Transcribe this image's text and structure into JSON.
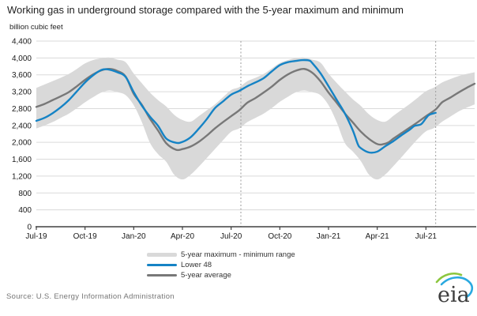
{
  "header": {
    "title": "Working gas in underground storage compared with the 5-year maximum and minimum",
    "units_label": "billion cubic feet"
  },
  "footer": {
    "source": "Source:  U.S. Energy Information Administration",
    "logo_text": "eia"
  },
  "colors": {
    "band": "#d9d9d9",
    "lower48": "#1583c5",
    "avg": "#787878",
    "grid": "#dadada",
    "axis": "#404040",
    "dashed": "#9b9b9b",
    "tick_text": "#1a1a1a"
  },
  "legend": [
    {
      "label": "5-year maximum - minimum range",
      "swatch": "band",
      "color": "#d9d9d9"
    },
    {
      "label": "Lower 48",
      "swatch": "line",
      "color": "#1583c5"
    },
    {
      "label": "5-year average",
      "swatch": "line",
      "color": "#787878"
    }
  ],
  "chart_data": {
    "type": "area",
    "title": "Working gas in underground storage compared with the 5-year maximum and minimum",
    "xlabel": "",
    "ylabel": "billion cubic feet",
    "ylim": [
      0,
      4400
    ],
    "ytick_step": 400,
    "yticks": [
      "0",
      "400",
      "800",
      "1,200",
      "1,600",
      "2,000",
      "2,400",
      "2,800",
      "3,200",
      "3,600",
      "4,000",
      "4,400"
    ],
    "x_unit_note": "t = months after Jul-2019",
    "x_max": 27,
    "x_ticks": [
      {
        "t": 0,
        "label": "Jul-19"
      },
      {
        "t": 3,
        "label": "Oct-19"
      },
      {
        "t": 6,
        "label": "Jan-20"
      },
      {
        "t": 9,
        "label": "Apr-20"
      },
      {
        "t": 12,
        "label": "Jul-20"
      },
      {
        "t": 15,
        "label": "Oct-20"
      },
      {
        "t": 18,
        "label": "Jan-21"
      },
      {
        "t": 21,
        "label": "Apr-21"
      },
      {
        "t": 24,
        "label": "Jul-21"
      }
    ],
    "dashed_vlines_t": [
      12.6,
      24.6
    ],
    "grid": true,
    "legend_position": "bottom",
    "band": {
      "name": "5-year maximum - minimum range",
      "points_t_min_max": [
        [
          0,
          2330,
          3290
        ],
        [
          0.5,
          2400,
          3370
        ],
        [
          1,
          2480,
          3450
        ],
        [
          1.5,
          2580,
          3530
        ],
        [
          2,
          2680,
          3620
        ],
        [
          2.5,
          2810,
          3740
        ],
        [
          3,
          2950,
          3870
        ],
        [
          3.5,
          3070,
          3950
        ],
        [
          4,
          3180,
          3990
        ],
        [
          4.5,
          3230,
          4010
        ],
        [
          5,
          3190,
          3960
        ],
        [
          5.5,
          3120,
          3900
        ],
        [
          6,
          2880,
          3630
        ],
        [
          6.5,
          2480,
          3400
        ],
        [
          7,
          1990,
          3180
        ],
        [
          7.5,
          1720,
          3000
        ],
        [
          8,
          1540,
          2850
        ],
        [
          8.5,
          1230,
          2650
        ],
        [
          9,
          1120,
          2530
        ],
        [
          9.5,
          1230,
          2490
        ],
        [
          10,
          1420,
          2620
        ],
        [
          10.5,
          1630,
          2760
        ],
        [
          11,
          1840,
          2900
        ],
        [
          11.5,
          2050,
          3070
        ],
        [
          12,
          2250,
          3240
        ],
        [
          12.5,
          2330,
          3310
        ],
        [
          13,
          2480,
          3450
        ],
        [
          13.5,
          2580,
          3530
        ],
        [
          14,
          2680,
          3620
        ],
        [
          14.5,
          2810,
          3750
        ],
        [
          15,
          2960,
          3880
        ],
        [
          15.5,
          3080,
          3950
        ],
        [
          16,
          3190,
          4000
        ],
        [
          16.5,
          3230,
          4010
        ],
        [
          17,
          3190,
          3960
        ],
        [
          17.5,
          3120,
          3890
        ],
        [
          18,
          2880,
          3630
        ],
        [
          18.5,
          2480,
          3410
        ],
        [
          19,
          1990,
          3210
        ],
        [
          19.5,
          1780,
          3020
        ],
        [
          20,
          1550,
          2860
        ],
        [
          20.5,
          1230,
          2660
        ],
        [
          21,
          1120,
          2530
        ],
        [
          21.5,
          1240,
          2490
        ],
        [
          22,
          1440,
          2630
        ],
        [
          22.5,
          1650,
          2770
        ],
        [
          23,
          1870,
          2910
        ],
        [
          23.5,
          2080,
          3060
        ],
        [
          24,
          2260,
          3210
        ],
        [
          24.5,
          2340,
          3300
        ],
        [
          25,
          2490,
          3420
        ],
        [
          25.5,
          2610,
          3500
        ],
        [
          26,
          2730,
          3570
        ],
        [
          26.5,
          2820,
          3620
        ],
        [
          27,
          2900,
          3660
        ]
      ]
    },
    "series": [
      {
        "name": "5-year average",
        "color": "#787878",
        "stroke_width": 2.4,
        "points": [
          [
            0,
            2840
          ],
          [
            0.5,
            2910
          ],
          [
            1,
            3000
          ],
          [
            1.5,
            3090
          ],
          [
            2,
            3190
          ],
          [
            2.5,
            3330
          ],
          [
            3,
            3480
          ],
          [
            3.5,
            3610
          ],
          [
            4,
            3705
          ],
          [
            4.5,
            3740
          ],
          [
            5,
            3690
          ],
          [
            5.5,
            3560
          ],
          [
            6,
            3150
          ],
          [
            6.5,
            2890
          ],
          [
            7,
            2560
          ],
          [
            7.5,
            2280
          ],
          [
            8,
            1980
          ],
          [
            8.6,
            1825
          ],
          [
            9,
            1840
          ],
          [
            9.5,
            1900
          ],
          [
            10,
            2010
          ],
          [
            10.5,
            2160
          ],
          [
            11,
            2330
          ],
          [
            11.5,
            2480
          ],
          [
            12,
            2620
          ],
          [
            12.5,
            2760
          ],
          [
            13,
            2940
          ],
          [
            13.5,
            3050
          ],
          [
            14,
            3180
          ],
          [
            14.5,
            3320
          ],
          [
            15,
            3480
          ],
          [
            15.5,
            3610
          ],
          [
            16,
            3700
          ],
          [
            16.5,
            3740
          ],
          [
            17,
            3650
          ],
          [
            17.5,
            3450
          ],
          [
            18,
            3180
          ],
          [
            18.5,
            2940
          ],
          [
            19,
            2690
          ],
          [
            19.5,
            2470
          ],
          [
            20,
            2250
          ],
          [
            20.5,
            2080
          ],
          [
            21,
            1960
          ],
          [
            21.3,
            1950
          ],
          [
            21.7,
            2000
          ],
          [
            22,
            2090
          ],
          [
            22.5,
            2220
          ],
          [
            23,
            2350
          ],
          [
            23.5,
            2480
          ],
          [
            24,
            2620
          ],
          [
            24.6,
            2780
          ],
          [
            25,
            2950
          ],
          [
            25.5,
            3060
          ],
          [
            26,
            3180
          ],
          [
            26.5,
            3290
          ],
          [
            27,
            3390
          ]
        ]
      },
      {
        "name": "Lower 48",
        "color": "#1583c5",
        "stroke_width": 2.4,
        "points": [
          [
            0,
            2510
          ],
          [
            0.5,
            2580
          ],
          [
            1,
            2690
          ],
          [
            1.5,
            2830
          ],
          [
            2,
            3000
          ],
          [
            2.5,
            3210
          ],
          [
            3,
            3420
          ],
          [
            3.5,
            3590
          ],
          [
            4,
            3715
          ],
          [
            4.4,
            3730
          ],
          [
            5,
            3660
          ],
          [
            5.5,
            3550
          ],
          [
            6,
            3190
          ],
          [
            6.5,
            2870
          ],
          [
            7,
            2610
          ],
          [
            7.5,
            2390
          ],
          [
            8,
            2090
          ],
          [
            8.6,
            1990
          ],
          [
            9,
            2010
          ],
          [
            9.5,
            2120
          ],
          [
            10,
            2320
          ],
          [
            10.5,
            2550
          ],
          [
            11,
            2810
          ],
          [
            11.5,
            2970
          ],
          [
            12,
            3130
          ],
          [
            12.5,
            3220
          ],
          [
            13,
            3330
          ],
          [
            13.5,
            3420
          ],
          [
            14,
            3520
          ],
          [
            14.5,
            3680
          ],
          [
            15,
            3830
          ],
          [
            15.5,
            3900
          ],
          [
            16,
            3930
          ],
          [
            16.4,
            3950
          ],
          [
            16.8,
            3940
          ],
          [
            17,
            3880
          ],
          [
            17.5,
            3640
          ],
          [
            18,
            3330
          ],
          [
            18.5,
            3010
          ],
          [
            19,
            2690
          ],
          [
            19.5,
            2280
          ],
          [
            19.8,
            1960
          ],
          [
            20,
            1860
          ],
          [
            20.5,
            1760
          ],
          [
            21,
            1780
          ],
          [
            21.5,
            1910
          ],
          [
            22,
            2030
          ],
          [
            22.5,
            2170
          ],
          [
            23,
            2300
          ],
          [
            23.3,
            2390
          ],
          [
            23.7,
            2430
          ],
          [
            24,
            2570
          ],
          [
            24.2,
            2650
          ],
          [
            24.6,
            2700
          ]
        ]
      }
    ]
  }
}
